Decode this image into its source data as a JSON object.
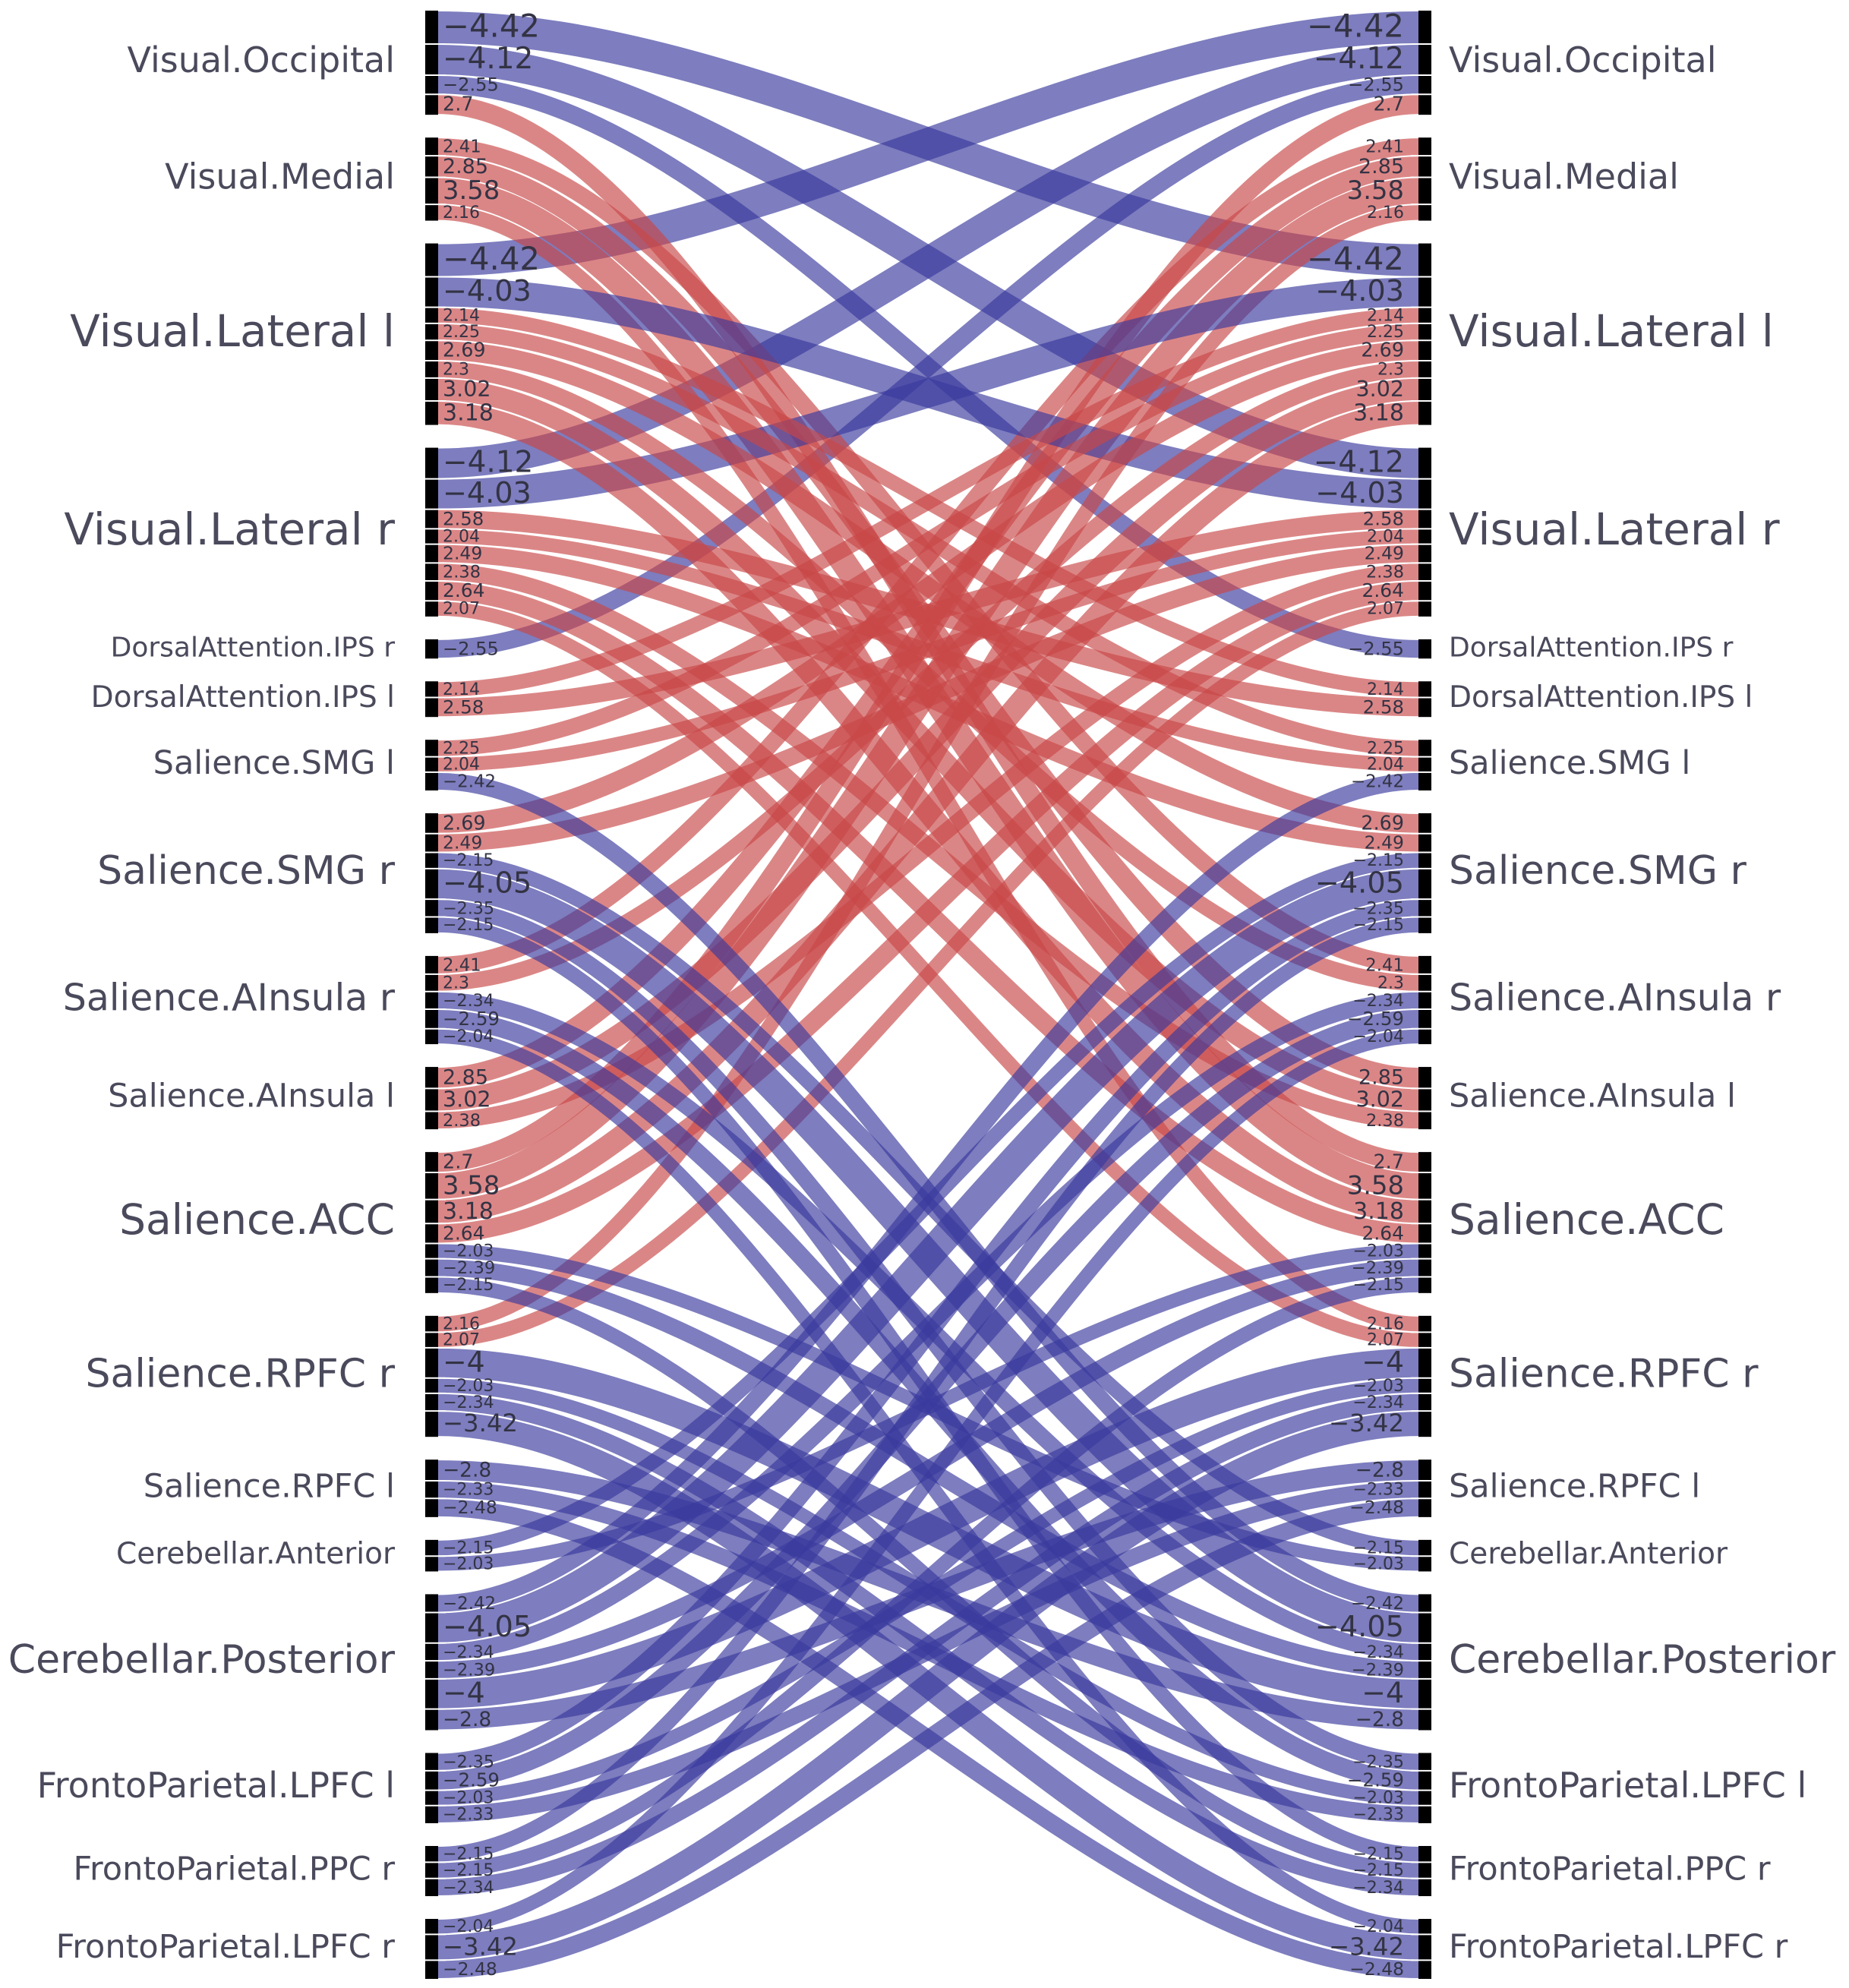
{
  "diagram": {
    "type": "connectogram-chord",
    "colors": {
      "positive": "#c84848",
      "negative": "#3a3a9e",
      "bar": "#000000",
      "label": "#4a4a5c"
    },
    "nodes": [
      {
        "id": "VO",
        "label": "Visual.Occipital",
        "conns": [
          "-4.42",
          "-4.12",
          "-2.55",
          "2.7"
        ]
      },
      {
        "id": "VM",
        "label": "Visual.Medial",
        "conns": [
          "2.41",
          "2.85",
          "3.58",
          "2.16"
        ]
      },
      {
        "id": "VLl",
        "label": "Visual.Lateral l",
        "conns": [
          "-4.42",
          "-4.03",
          "2.14",
          "2.25",
          "2.69",
          "2.3",
          "3.02",
          "3.18"
        ]
      },
      {
        "id": "VLr",
        "label": "Visual.Lateral r",
        "conns": [
          "-4.12",
          "-4.03",
          "2.58",
          "2.04",
          "2.49",
          "2.38",
          "2.64",
          "2.07"
        ]
      },
      {
        "id": "DAr",
        "label": "DorsalAttention.IPS r",
        "conns": [
          "-2.55"
        ]
      },
      {
        "id": "DAl",
        "label": "DorsalAttention.IPS l",
        "conns": [
          "2.14",
          "2.58"
        ]
      },
      {
        "id": "SSl",
        "label": "Salience.SMG l",
        "conns": [
          "2.25",
          "2.04",
          "-2.42"
        ]
      },
      {
        "id": "SSr",
        "label": "Salience.SMG r",
        "conns": [
          "2.69",
          "2.49",
          "-2.15",
          "-4.05",
          "-2.35",
          "-2.15"
        ]
      },
      {
        "id": "SAr",
        "label": "Salience.AInsula r",
        "conns": [
          "2.41",
          "2.3",
          "-2.34",
          "-2.59",
          "-2.04"
        ]
      },
      {
        "id": "SAl",
        "label": "Salience.AInsula l",
        "conns": [
          "2.85",
          "3.02",
          "2.38"
        ]
      },
      {
        "id": "SACC",
        "label": "Salience.ACC",
        "conns": [
          "2.7",
          "3.58",
          "3.18",
          "2.64",
          "-2.03",
          "-2.39",
          "-2.15"
        ]
      },
      {
        "id": "SRr",
        "label": "Salience.RPFC r",
        "conns": [
          "2.16",
          "2.07",
          "-4",
          "-2.03",
          "-2.34",
          "-3.42"
        ]
      },
      {
        "id": "SRl",
        "label": "Salience.RPFC l",
        "conns": [
          "-2.8",
          "-2.33",
          "-2.48"
        ]
      },
      {
        "id": "CA",
        "label": "Cerebellar.Anterior",
        "conns": [
          "-2.15",
          "-2.03"
        ]
      },
      {
        "id": "CP",
        "label": "Cerebellar.Posterior",
        "conns": [
          "-2.42",
          "-4.05",
          "-2.34",
          "-2.39",
          "-4",
          "-2.8"
        ]
      },
      {
        "id": "FLl",
        "label": "FrontoParietal.LPFC l",
        "conns": [
          "-2.35",
          "-2.59",
          "-2.03",
          "-2.33"
        ]
      },
      {
        "id": "FPr",
        "label": "FrontoParietal.PPC r",
        "conns": [
          "-2.15",
          "-2.15",
          "-2.34"
        ]
      },
      {
        "id": "FLr",
        "label": "FrontoParietal.LPFC r",
        "conns": [
          "-2.04",
          "-3.42",
          "-2.48"
        ]
      }
    ],
    "edges": [
      [
        "VO",
        0,
        "VLl",
        0
      ],
      [
        "VO",
        1,
        "VLr",
        0
      ],
      [
        "VO",
        2,
        "DAr",
        0
      ],
      [
        "VO",
        3,
        "SACC",
        0
      ],
      [
        "VM",
        0,
        "SAr",
        0
      ],
      [
        "VM",
        1,
        "SAl",
        0
      ],
      [
        "VM",
        2,
        "SACC",
        1
      ],
      [
        "VM",
        3,
        "SRr",
        0
      ],
      [
        "VLl",
        1,
        "VLr",
        1
      ],
      [
        "VLl",
        2,
        "DAl",
        0
      ],
      [
        "VLl",
        3,
        "SSl",
        0
      ],
      [
        "VLl",
        4,
        "SSr",
        0
      ],
      [
        "VLl",
        5,
        "SAr",
        1
      ],
      [
        "VLl",
        6,
        "SAl",
        1
      ],
      [
        "VLl",
        7,
        "SACC",
        2
      ],
      [
        "VLr",
        2,
        "DAl",
        1
      ],
      [
        "VLr",
        3,
        "SSl",
        1
      ],
      [
        "VLr",
        4,
        "SSr",
        1
      ],
      [
        "VLr",
        5,
        "SAl",
        2
      ],
      [
        "VLr",
        6,
        "SACC",
        3
      ],
      [
        "VLr",
        7,
        "SRr",
        1
      ],
      [
        "SSl",
        2,
        "CP",
        0
      ],
      [
        "SSr",
        2,
        "CA",
        0
      ],
      [
        "SSr",
        3,
        "CP",
        1
      ],
      [
        "SSr",
        4,
        "FLl",
        0
      ],
      [
        "SSr",
        5,
        "FPr",
        0
      ],
      [
        "SAr",
        2,
        "CP",
        2
      ],
      [
        "SAr",
        3,
        "FLl",
        1
      ],
      [
        "SAr",
        4,
        "FLr",
        0
      ],
      [
        "SACC",
        4,
        "CA",
        1
      ],
      [
        "SACC",
        5,
        "CP",
        3
      ],
      [
        "SACC",
        6,
        "FPr",
        1
      ],
      [
        "SRr",
        2,
        "CP",
        4
      ],
      [
        "SRr",
        3,
        "FLl",
        2
      ],
      [
        "SRr",
        4,
        "FPr",
        2
      ],
      [
        "SRr",
        5,
        "FLr",
        1
      ],
      [
        "SRl",
        0,
        "CP",
        5
      ],
      [
        "SRl",
        1,
        "FLl",
        3
      ],
      [
        "SRl",
        2,
        "FLr",
        2
      ]
    ]
  }
}
